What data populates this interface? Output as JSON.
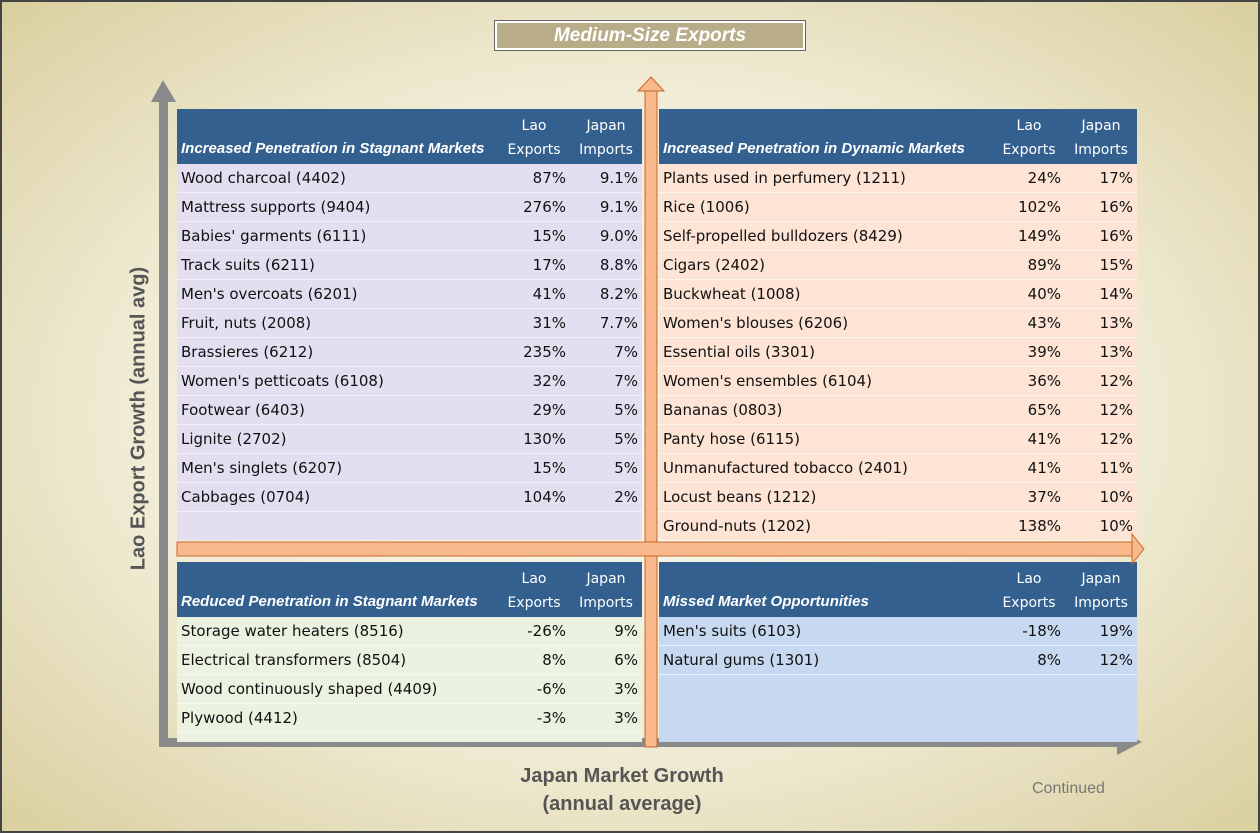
{
  "title": "Medium-Size Exports",
  "y_axis_label": "Lao Export Growth (annual avg)",
  "x_axis_label": "Japan Market Growth (annual average)",
  "footer": "Continued",
  "quadrants": [
    {
      "title": "Increased Penetration in Stagnant Markets",
      "col1": "Lao Exports",
      "col2": "Japan Imports",
      "rows": [
        [
          "Wood charcoal (4402)",
          "87%",
          "9.1%"
        ],
        [
          "Mattress supports (9404)",
          "276%",
          "9.1%"
        ],
        [
          "Babies' garments (6111)",
          "15%",
          "9.0%"
        ],
        [
          "Track suits (6211)",
          "17%",
          "8.8%"
        ],
        [
          "Men's overcoats (6201)",
          "41%",
          "8.2%"
        ],
        [
          "Fruit, nuts (2008)",
          "31%",
          "7.7%"
        ],
        [
          "Brassieres (6212)",
          "235%",
          "7%"
        ],
        [
          "Women's petticoats (6108)",
          "32%",
          "7%"
        ],
        [
          "Footwear (6403)",
          "29%",
          "5%"
        ],
        [
          "Lignite (2702)",
          "130%",
          "5%"
        ],
        [
          "Men's singlets (6207)",
          "15%",
          "5%"
        ],
        [
          "Cabbages (0704)",
          "104%",
          "2%"
        ]
      ]
    },
    {
      "title": "Increased Penetration in Dynamic Markets",
      "col1": "Lao Exports",
      "col2": "Japan Imports",
      "rows": [
        [
          "Plants used in perfumery (1211)",
          "24%",
          "17%"
        ],
        [
          "Rice (1006)",
          "102%",
          "16%"
        ],
        [
          "Self-propelled bulldozers (8429)",
          "149%",
          "16%"
        ],
        [
          "Cigars (2402)",
          "89%",
          "15%"
        ],
        [
          "Buckwheat (1008)",
          "40%",
          "14%"
        ],
        [
          "Women's blouses (6206)",
          "43%",
          "13%"
        ],
        [
          "Essential oils (3301)",
          "39%",
          "13%"
        ],
        [
          "Women's ensembles (6104)",
          "36%",
          "12%"
        ],
        [
          "Bananas (0803)",
          "65%",
          "12%"
        ],
        [
          "Panty hose (6115)",
          "41%",
          "12%"
        ],
        [
          "Unmanufactured tobacco (2401)",
          "41%",
          "11%"
        ],
        [
          "Locust beans (1212)",
          "37%",
          "10%"
        ],
        [
          "Ground-nuts (1202)",
          "138%",
          "10%"
        ]
      ]
    },
    {
      "title": "Reduced Penetration in Stagnant Markets",
      "col1": "Lao Exports",
      "col2": "Japan Imports",
      "rows": [
        [
          "Storage water heaters (8516)",
          "-26%",
          "9%"
        ],
        [
          "Electrical transformers (8504)",
          "8%",
          "6%"
        ],
        [
          "Wood continuously shaped (4409)",
          "-6%",
          "3%"
        ],
        [
          "Plywood (4412)",
          "-3%",
          "3%"
        ]
      ]
    },
    {
      "title": "Missed Market Opportunities",
      "col1": "Lao Exports",
      "col2": "Japan Imports",
      "rows": [
        [
          "Men's suits (6103)",
          "-18%",
          "19%"
        ],
        [
          "Natural gums (1301)",
          "8%",
          "12%"
        ]
      ]
    }
  ]
}
